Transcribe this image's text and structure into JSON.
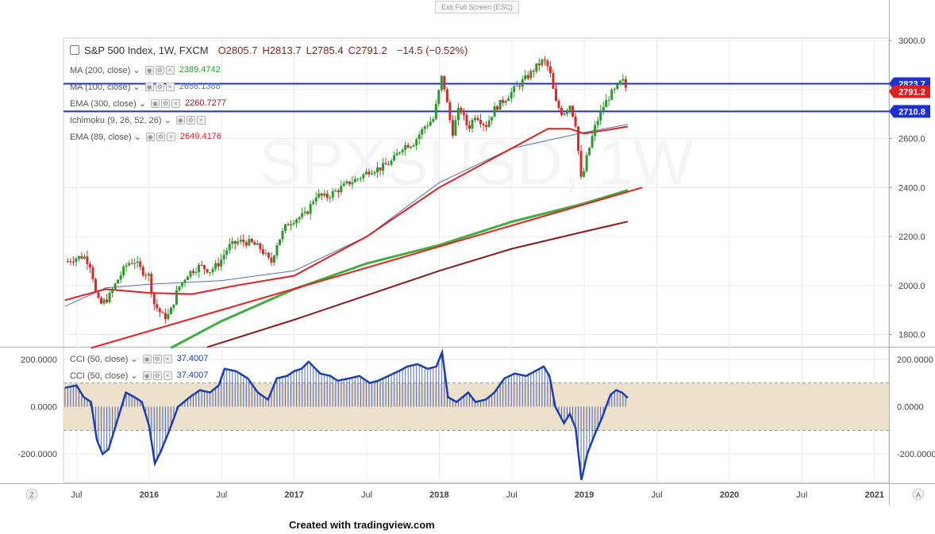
{
  "ui": {
    "exit_fullscreen": "Exit Full Screen (ESC)",
    "footer": "Created with tradingview.com",
    "title": "S&P 500 Index, 1W, FXCM",
    "ohlc": {
      "open": "O2805.7",
      "high": "H2813.7",
      "low": "L2785.4",
      "close": "C2791.2",
      "change": "−14.5 (−0.52%)"
    },
    "indicators": [
      {
        "label": "MA (200, close)",
        "value": "2389.4742",
        "color": "#2e9e2e"
      },
      {
        "label": "MA (100, close)",
        "value": "2658.1388",
        "color": "#5b7bb5"
      },
      {
        "label": "EMA (300, close)",
        "value": "2260.7277",
        "color": "#8b1a1a"
      },
      {
        "label": "Ichimoku (9, 26, 52, 26)",
        "value": "",
        "color": "#888888"
      },
      {
        "label": "EMA (89, close)",
        "value": "2649.4176",
        "color": "#e02020"
      }
    ],
    "cci_indicators": [
      {
        "label": "CCI (50, close)",
        "value": "37.4007",
        "color": "#1a3fb0"
      },
      {
        "label": "CCI (50, close)",
        "value": "37.4007",
        "color": "#1a3fb0"
      }
    ],
    "price_tags": [
      {
        "text": "2823.7",
        "price": 2823.7,
        "color": "#1e2fd6"
      },
      {
        "text": "2791.2",
        "price": 2791.2,
        "color": "#e21d1d"
      },
      {
        "text": "2710.8",
        "price": 2710.8,
        "color": "#1e2fd6"
      }
    ],
    "corner_left": "Z",
    "corner_right": "A",
    "watermark": "SPXSUSD, 1W"
  },
  "colors": {
    "up_candle": "#2a9a2a",
    "down_candle": "#d42a2a",
    "ma200": "#3fae3f",
    "ma100": "#5570b0",
    "ema300": "#8b1a1a",
    "ema89": "#e01f1f",
    "trendline": "#e82020",
    "hline": "#1e2fd6",
    "cci": "#1a3fb0",
    "cci_band": "#ede1cb"
  },
  "chart_data": [
    {
      "type": "candlestick",
      "title": "S&P 500 Index, 1W, FXCM",
      "x_ticks": [
        "Jul",
        "2016",
        "Jul",
        "2017",
        "Jul",
        "2018",
        "Jul",
        "2019",
        "Jul",
        "2020",
        "Jul",
        "2021"
      ],
      "x_tick_dates": [
        2015.5,
        2016.0,
        2016.5,
        2017.0,
        2017.5,
        2018.0,
        2018.5,
        2019.0,
        2019.5,
        2020.0,
        2020.5,
        2021.0
      ],
      "x_range": [
        2015.41,
        2021.1
      ],
      "y_ticks": [
        "3000.0",
        "2800.0",
        "2600.0",
        "2400.0",
        "2200.0",
        "2000.0",
        "1800.0"
      ],
      "ylim": [
        1750,
        3010
      ],
      "close_path": [
        [
          2015.42,
          2095
        ],
        [
          2015.48,
          2110
        ],
        [
          2015.55,
          2120
        ],
        [
          2015.6,
          2080
        ],
        [
          2015.63,
          1970
        ],
        [
          2015.66,
          1920
        ],
        [
          2015.72,
          1950
        ],
        [
          2015.78,
          2020
        ],
        [
          2015.85,
          2090
        ],
        [
          2015.9,
          2100
        ],
        [
          2015.95,
          2060
        ],
        [
          2016.0,
          2040
        ],
        [
          2016.03,
          1930
        ],
        [
          2016.1,
          1870
        ],
        [
          2016.14,
          1880
        ],
        [
          2016.2,
          1990
        ],
        [
          2016.27,
          2050
        ],
        [
          2016.35,
          2080
        ],
        [
          2016.42,
          2060
        ],
        [
          2016.48,
          2090
        ],
        [
          2016.55,
          2160
        ],
        [
          2016.62,
          2180
        ],
        [
          2016.7,
          2175
        ],
        [
          2016.77,
          2150
        ],
        [
          2016.84,
          2090
        ],
        [
          2016.88,
          2170
        ],
        [
          2016.95,
          2250
        ],
        [
          2017.0,
          2270
        ],
        [
          2017.08,
          2290
        ],
        [
          2017.15,
          2370
        ],
        [
          2017.22,
          2360
        ],
        [
          2017.3,
          2390
        ],
        [
          2017.38,
          2420
        ],
        [
          2017.45,
          2440
        ],
        [
          2017.52,
          2470
        ],
        [
          2017.6,
          2480
        ],
        [
          2017.68,
          2510
        ],
        [
          2017.75,
          2570
        ],
        [
          2017.82,
          2580
        ],
        [
          2017.9,
          2650
        ],
        [
          2017.96,
          2680
        ],
        [
          2018.02,
          2860
        ],
        [
          2018.09,
          2620
        ],
        [
          2018.14,
          2730
        ],
        [
          2018.2,
          2640
        ],
        [
          2018.25,
          2700
        ],
        [
          2018.32,
          2650
        ],
        [
          2018.38,
          2720
        ],
        [
          2018.45,
          2760
        ],
        [
          2018.55,
          2820
        ],
        [
          2018.62,
          2860
        ],
        [
          2018.68,
          2900
        ],
        [
          2018.72,
          2920
        ],
        [
          2018.76,
          2880
        ],
        [
          2018.8,
          2750
        ],
        [
          2018.85,
          2700
        ],
        [
          2018.9,
          2740
        ],
        [
          2018.94,
          2660
        ],
        [
          2018.98,
          2420
        ],
        [
          2019.02,
          2530
        ],
        [
          2019.07,
          2640
        ],
        [
          2019.12,
          2720
        ],
        [
          2019.18,
          2780
        ],
        [
          2019.22,
          2800
        ],
        [
          2019.26,
          2840
        ],
        [
          2019.3,
          2791
        ]
      ],
      "hlines": [
        2823.7,
        2710.8
      ],
      "series": [
        {
          "name": "MA (200, close)",
          "color": "#3fae3f",
          "values": [
            [
              2016.15,
              1745
            ],
            [
              2016.5,
              1855
            ],
            [
              2017.0,
              1985
            ],
            [
              2017.5,
              2090
            ],
            [
              2018.0,
              2165
            ],
            [
              2018.5,
              2260
            ],
            [
              2019.0,
              2335
            ],
            [
              2019.3,
              2389
            ]
          ]
        },
        {
          "name": "MA (100, close)",
          "color": "#5570b0",
          "values": [
            [
              2015.42,
              1915
            ],
            [
              2015.7,
              1990
            ],
            [
              2016.0,
              2005
            ],
            [
              2016.5,
              2020
            ],
            [
              2017.0,
              2060
            ],
            [
              2017.5,
              2200
            ],
            [
              2018.0,
              2420
            ],
            [
              2018.5,
              2560
            ],
            [
              2019.0,
              2625
            ],
            [
              2019.3,
              2658
            ]
          ]
        },
        {
          "name": "EMA (300, close)",
          "color": "#8b1a1a",
          "values": [
            [
              2016.4,
              1748
            ],
            [
              2017.0,
              1860
            ],
            [
              2017.5,
              1960
            ],
            [
              2018.0,
              2060
            ],
            [
              2018.5,
              2150
            ],
            [
              2019.0,
              2220
            ],
            [
              2019.3,
              2261
            ]
          ]
        },
        {
          "name": "EMA (89, close)",
          "color": "#e01f1f",
          "values": [
            [
              2015.42,
              1940
            ],
            [
              2015.7,
              1985
            ],
            [
              2016.0,
              1970
            ],
            [
              2016.3,
              1965
            ],
            [
              2016.6,
              2000
            ],
            [
              2017.0,
              2040
            ],
            [
              2017.5,
              2200
            ],
            [
              2018.0,
              2400
            ],
            [
              2018.5,
              2560
            ],
            [
              2018.75,
              2640
            ],
            [
              2018.9,
              2640
            ],
            [
              2019.0,
              2620
            ],
            [
              2019.3,
              2649
            ]
          ]
        },
        {
          "name": "Trendline",
          "color": "#e82020",
          "values": [
            [
              2015.6,
              1745
            ],
            [
              2019.4,
              2400
            ]
          ]
        }
      ]
    },
    {
      "type": "area",
      "title": "CCI (50, close)",
      "y_ticks": [
        "200.0000",
        "0.0000",
        "-200.0000"
      ],
      "ylim": [
        -320,
        250
      ],
      "band": [
        -100,
        100
      ],
      "values": [
        [
          2015.42,
          80
        ],
        [
          2015.5,
          90
        ],
        [
          2015.55,
          40
        ],
        [
          2015.6,
          20
        ],
        [
          2015.64,
          -140
        ],
        [
          2015.68,
          -200
        ],
        [
          2015.72,
          -180
        ],
        [
          2015.78,
          -60
        ],
        [
          2015.84,
          60
        ],
        [
          2015.9,
          40
        ],
        [
          2015.95,
          20
        ],
        [
          2016.0,
          -80
        ],
        [
          2016.04,
          -240
        ],
        [
          2016.08,
          -190
        ],
        [
          2016.14,
          -100
        ],
        [
          2016.2,
          0
        ],
        [
          2016.28,
          40
        ],
        [
          2016.35,
          70
        ],
        [
          2016.42,
          60
        ],
        [
          2016.48,
          90
        ],
        [
          2016.52,
          160
        ],
        [
          2016.6,
          150
        ],
        [
          2016.68,
          120
        ],
        [
          2016.75,
          60
        ],
        [
          2016.82,
          30
        ],
        [
          2016.88,
          120
        ],
        [
          2016.95,
          130
        ],
        [
          2017.0,
          150
        ],
        [
          2017.05,
          160
        ],
        [
          2017.1,
          190
        ],
        [
          2017.18,
          140
        ],
        [
          2017.25,
          130
        ],
        [
          2017.3,
          110
        ],
        [
          2017.38,
          120
        ],
        [
          2017.45,
          130
        ],
        [
          2017.52,
          100
        ],
        [
          2017.58,
          110
        ],
        [
          2017.65,
          130
        ],
        [
          2017.72,
          150
        ],
        [
          2017.78,
          170
        ],
        [
          2017.85,
          180
        ],
        [
          2017.92,
          160
        ],
        [
          2017.98,
          170
        ],
        [
          2018.02,
          230
        ],
        [
          2018.06,
          40
        ],
        [
          2018.12,
          20
        ],
        [
          2018.2,
          60
        ],
        [
          2018.25,
          20
        ],
        [
          2018.32,
          30
        ],
        [
          2018.38,
          60
        ],
        [
          2018.45,
          120
        ],
        [
          2018.52,
          140
        ],
        [
          2018.6,
          130
        ],
        [
          2018.66,
          150
        ],
        [
          2018.72,
          170
        ],
        [
          2018.76,
          130
        ],
        [
          2018.8,
          0
        ],
        [
          2018.86,
          -70
        ],
        [
          2018.9,
          -30
        ],
        [
          2018.94,
          -90
        ],
        [
          2018.98,
          -310
        ],
        [
          2019.02,
          -200
        ],
        [
          2019.07,
          -120
        ],
        [
          2019.12,
          -50
        ],
        [
          2019.18,
          50
        ],
        [
          2019.22,
          70
        ],
        [
          2019.26,
          60
        ],
        [
          2019.3,
          37
        ]
      ]
    }
  ]
}
